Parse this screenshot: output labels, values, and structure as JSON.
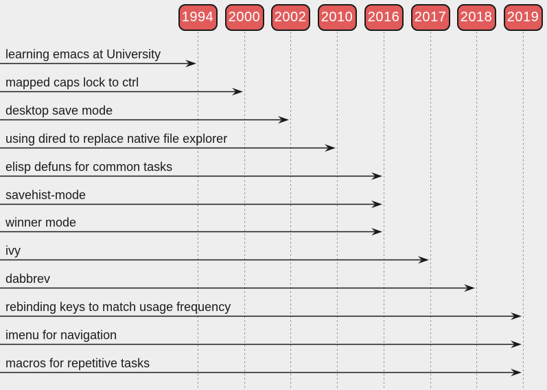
{
  "colors": {
    "background": "#eeeeee",
    "year_box_fill": "#e15b5b",
    "year_box_border": "#1a1a1a",
    "year_text": "#ffffff",
    "label_text": "#1a1a1a",
    "arrow": "#1a1a1a",
    "gridline": "#999999"
  },
  "timeline": {
    "years": [
      "1994",
      "2000",
      "2002",
      "2010",
      "2016",
      "2017",
      "2018",
      "2019"
    ],
    "entries": [
      {
        "label": "learning emacs at University",
        "year": "1994"
      },
      {
        "label": "mapped caps lock to ctrl",
        "year": "2000"
      },
      {
        "label": "desktop save mode",
        "year": "2002"
      },
      {
        "label": "using dired to replace native file explorer",
        "year": "2010"
      },
      {
        "label": "elisp defuns for common tasks",
        "year": "2016"
      },
      {
        "label": "savehist-mode",
        "year": "2016"
      },
      {
        "label": "winner mode",
        "year": "2016"
      },
      {
        "label": "ivy",
        "year": "2017"
      },
      {
        "label": "dabbrev",
        "year": "2018"
      },
      {
        "label": "rebinding keys to match usage frequency",
        "year": "2019"
      },
      {
        "label": "imenu for navigation",
        "year": "2019"
      },
      {
        "label": "macros for repetitive tasks",
        "year": "2019"
      }
    ]
  }
}
